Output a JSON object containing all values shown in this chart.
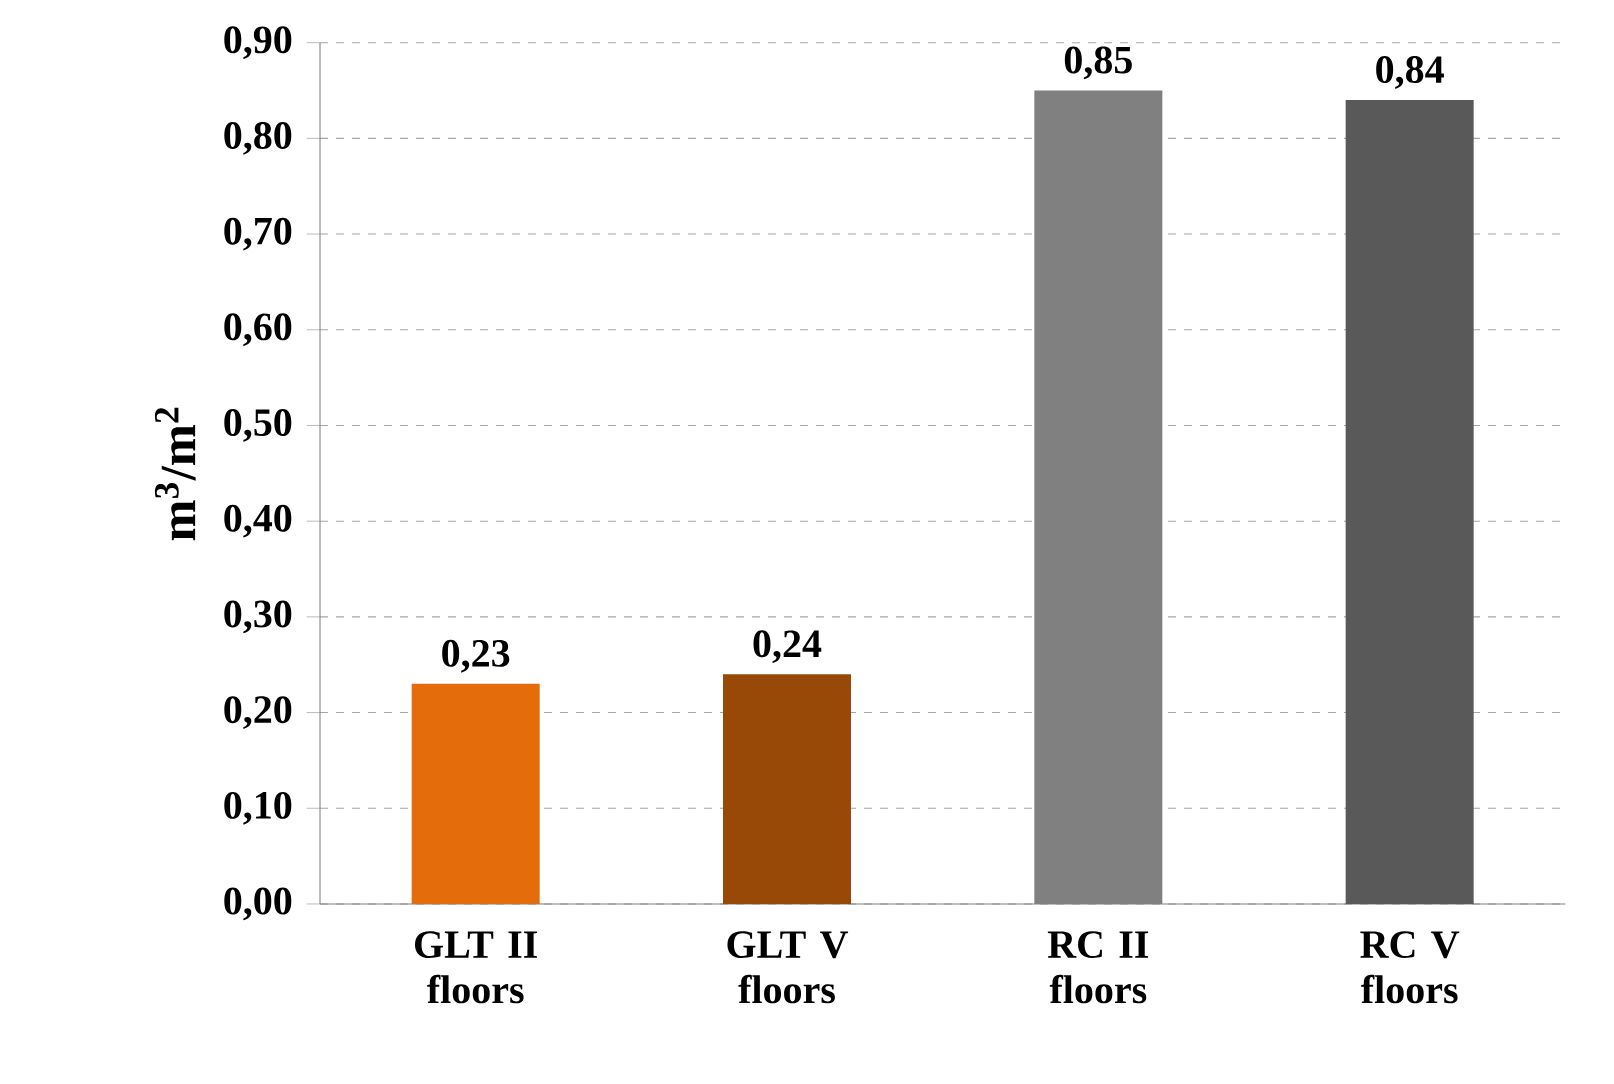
{
  "chart_data": {
    "type": "bar",
    "ylabel": "m$^{3}$/m$^{2}$",
    "categories": [
      "GLT II floors",
      "GLT V floors",
      "RC II floors",
      "RC V floors"
    ],
    "values": [
      0.23,
      0.24,
      0.85,
      0.84
    ],
    "colors": [
      "#e46c0a",
      "#984807",
      "#808080",
      "#595959"
    ],
    "value_labels": [
      "0,23",
      "0,24",
      "0,85",
      "0,84"
    ],
    "ylim": [
      0,
      0.9
    ],
    "yticks": [
      {
        "value": 0,
        "label": "0,00"
      },
      {
        "value": 0.1,
        "label": "0,10"
      },
      {
        "value": 0.2,
        "label": "0,20"
      },
      {
        "value": 0.3,
        "label": "0,30"
      },
      {
        "value": 0.4,
        "label": "0,40"
      },
      {
        "value": 0.5,
        "label": "0,50"
      },
      {
        "value": 0.6,
        "label": "0,60"
      },
      {
        "value": 0.7,
        "label": "0,70"
      },
      {
        "value": 0.8,
        "label": "0,80"
      },
      {
        "value": 0.9,
        "label": "0,90"
      }
    ],
    "grid": "y"
  }
}
